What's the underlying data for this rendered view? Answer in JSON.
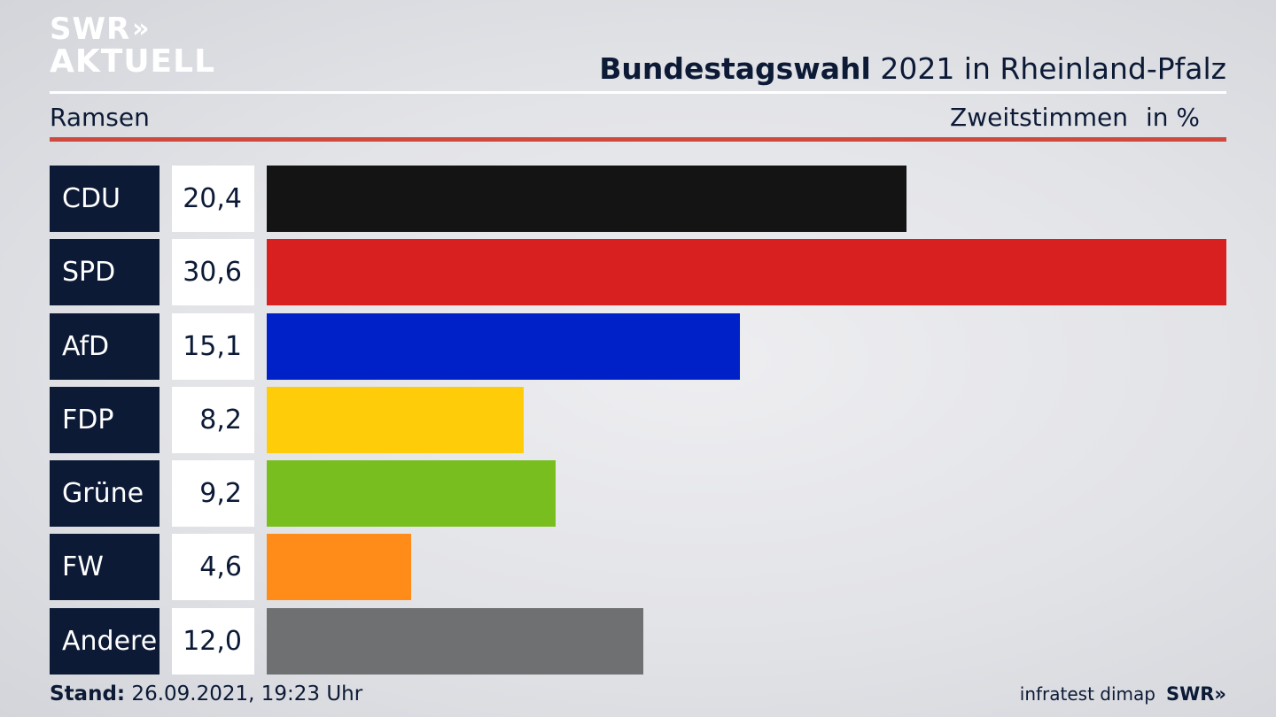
{
  "logo": {
    "line1": "SWR",
    "line1_arrows": "»",
    "line2": "AKTUELL"
  },
  "header": {
    "title_bold": "Bundestagswahl",
    "title_rest": " 2021 in Rheinland-Pfalz",
    "region": "Ramsen",
    "measure": "Zweitstimmen",
    "unit": "in %"
  },
  "chart_data": {
    "type": "bar",
    "orientation": "horizontal",
    "categories": [
      "CDU",
      "SPD",
      "AfD",
      "FDP",
      "Grüne",
      "FW",
      "Andere"
    ],
    "values": [
      20.4,
      30.6,
      15.1,
      8.2,
      9.2,
      4.6,
      12.0
    ],
    "value_labels": [
      "20,4",
      "30,6",
      "15,1",
      "8,2",
      "9,2",
      "4,6",
      "12,0"
    ],
    "colors": [
      "#141414",
      "#d7201f",
      "#0021c8",
      "#ffcc0a",
      "#78be1e",
      "#ff8c19",
      "#6f7072"
    ],
    "max": 30.6
  },
  "footer": {
    "stand_label": "Stand:",
    "stand_value": " 26.09.2021, 19:23 Uhr",
    "source": "infratest dimap",
    "brand": "SWR»"
  }
}
